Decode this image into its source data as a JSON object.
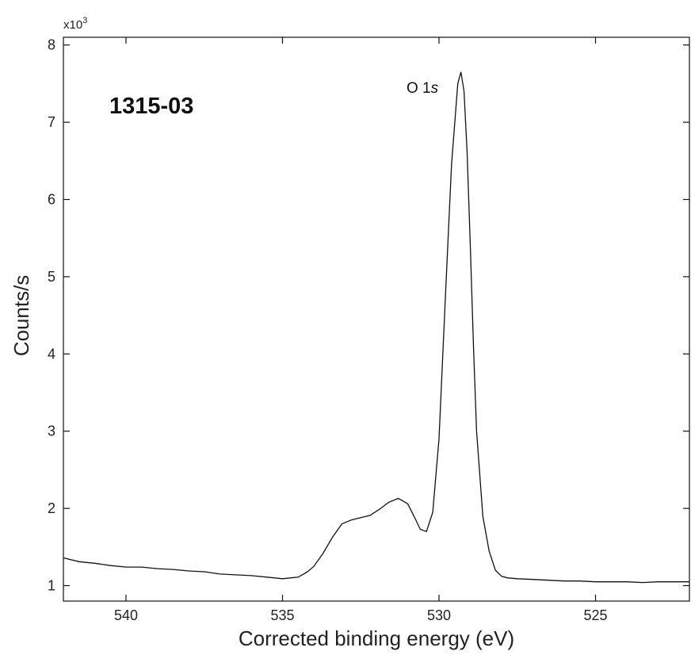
{
  "chart_data": {
    "type": "line",
    "xlabel": "Corrected binding energy (eV)",
    "ylabel": "Counts/s",
    "y_multiplier": "x10",
    "y_multiplier_exp": "3",
    "xlim": [
      542,
      522
    ],
    "ylim": [
      0.8,
      8.1
    ],
    "x_reversed": true,
    "grid": false,
    "x_ticks": [
      540,
      535,
      530,
      525
    ],
    "y_ticks": [
      1,
      2,
      3,
      4,
      5,
      6,
      7,
      8
    ],
    "annotations": {
      "sample": "1315-03",
      "peak_main": "O 1",
      "peak_italic": "s"
    },
    "series": [
      {
        "x": [
          542.0,
          541.5,
          541.0,
          540.5,
          540.0,
          539.5,
          539.0,
          538.5,
          538.0,
          537.5,
          537.0,
          536.5,
          536.0,
          535.5,
          535.0,
          534.5,
          534.2,
          534.0,
          533.7,
          533.4,
          533.1,
          532.8,
          532.5,
          532.2,
          531.9,
          531.6,
          531.3,
          531.0,
          530.8,
          530.6,
          530.4,
          530.2,
          530.0,
          529.8,
          529.6,
          529.4,
          529.3,
          529.2,
          529.1,
          529.0,
          528.9,
          528.8,
          528.6,
          528.4,
          528.2,
          528.0,
          527.8,
          527.5,
          527.0,
          526.5,
          526.0,
          525.5,
          525.0,
          524.5,
          524.0,
          523.5,
          523.0,
          522.5,
          522.0
        ],
        "y": [
          1.36,
          1.31,
          1.29,
          1.26,
          1.24,
          1.24,
          1.22,
          1.21,
          1.19,
          1.18,
          1.15,
          1.14,
          1.13,
          1.11,
          1.09,
          1.11,
          1.18,
          1.25,
          1.42,
          1.63,
          1.8,
          1.85,
          1.88,
          1.91,
          1.99,
          2.08,
          2.13,
          2.06,
          1.9,
          1.73,
          1.7,
          1.95,
          2.9,
          4.7,
          6.45,
          7.5,
          7.65,
          7.4,
          6.6,
          5.4,
          4.1,
          3.0,
          1.9,
          1.45,
          1.2,
          1.12,
          1.1,
          1.09,
          1.08,
          1.07,
          1.06,
          1.06,
          1.05,
          1.05,
          1.05,
          1.04,
          1.05,
          1.05,
          1.05
        ]
      }
    ]
  }
}
